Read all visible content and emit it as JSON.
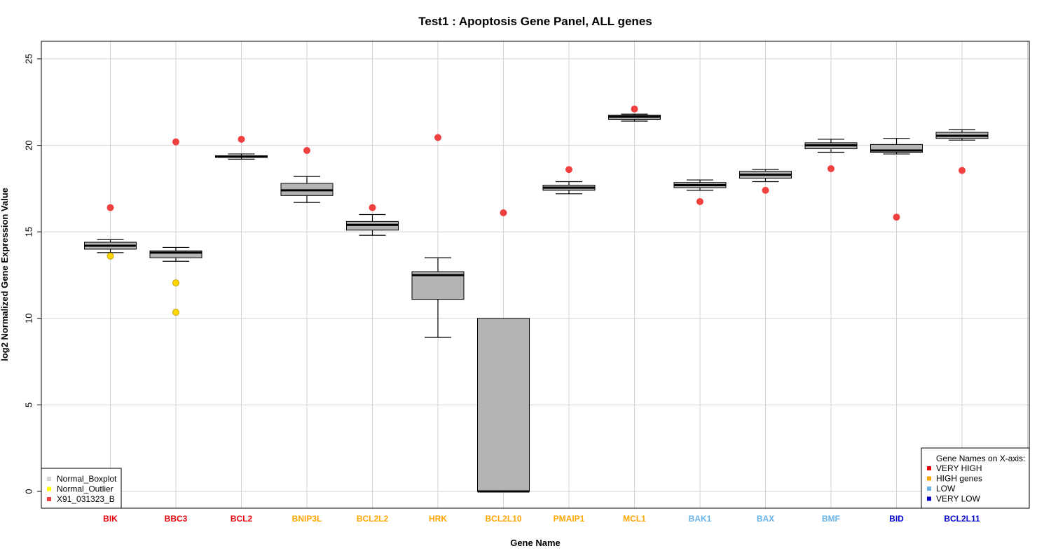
{
  "chart_data": {
    "type": "boxplot",
    "title": "Test1 : Apoptosis Gene Panel, ALL genes",
    "xlabel": "Gene Name",
    "ylabel": "log2 Normalized Gene Expression Value",
    "ylim": [
      -1,
      26
    ],
    "yticks": [
      0,
      5,
      10,
      15,
      20,
      25
    ],
    "grid": true,
    "category_colors": {
      "VERY HIGH": "#e8000b",
      "HIGH genes": "#ffa500",
      "LOW": "#66b2e8",
      "VERY LOW": "#0000cd"
    },
    "genes": [
      {
        "name": "BIK",
        "group": "VERY HIGH",
        "min": 13.8,
        "q1": 14.0,
        "median": 14.2,
        "q3": 14.4,
        "max": 14.55,
        "outliers": [
          13.6
        ],
        "sample": 16.4
      },
      {
        "name": "BBC3",
        "group": "VERY HIGH",
        "min": 13.3,
        "q1": 13.5,
        "median": 13.8,
        "q3": 13.9,
        "max": 14.1,
        "outliers": [
          12.05,
          10.35
        ],
        "sample": 20.2
      },
      {
        "name": "BCL2",
        "group": "VERY HIGH",
        "min": 19.2,
        "q1": 19.3,
        "median": 19.35,
        "q3": 19.4,
        "max": 19.5,
        "outliers": [],
        "sample": 20.35
      },
      {
        "name": "BNIP3L",
        "group": "HIGH genes",
        "min": 16.7,
        "q1": 17.1,
        "median": 17.4,
        "q3": 17.8,
        "max": 18.2,
        "outliers": [],
        "sample": 19.7
      },
      {
        "name": "BCL2L2",
        "group": "HIGH genes",
        "min": 14.8,
        "q1": 15.1,
        "median": 15.4,
        "q3": 15.6,
        "max": 16.0,
        "outliers": [],
        "sample": 16.4
      },
      {
        "name": "HRK",
        "group": "HIGH genes",
        "min": 8.9,
        "q1": 11.1,
        "median": 12.5,
        "q3": 12.7,
        "max": 13.5,
        "outliers": [],
        "sample": 20.45
      },
      {
        "name": "BCL2L10",
        "group": "HIGH genes",
        "min": 0.0,
        "q1": 0.0,
        "median": 0.0,
        "q3": 10.0,
        "max": 10.0,
        "outliers": [],
        "sample": 16.1
      },
      {
        "name": "PMAIP1",
        "group": "HIGH genes",
        "min": 17.2,
        "q1": 17.4,
        "median": 17.55,
        "q3": 17.7,
        "max": 17.9,
        "outliers": [],
        "sample": 18.6
      },
      {
        "name": "MCL1",
        "group": "HIGH genes",
        "min": 21.4,
        "q1": 21.5,
        "median": 21.65,
        "q3": 21.75,
        "max": 21.8,
        "outliers": [],
        "sample": 22.1
      },
      {
        "name": "BAK1",
        "group": "LOW",
        "min": 17.4,
        "q1": 17.55,
        "median": 17.7,
        "q3": 17.85,
        "max": 18.0,
        "outliers": [],
        "sample": 16.75
      },
      {
        "name": "BAX",
        "group": "LOW",
        "min": 17.9,
        "q1": 18.1,
        "median": 18.3,
        "q3": 18.5,
        "max": 18.6,
        "outliers": [],
        "sample": 17.4
      },
      {
        "name": "BMF",
        "group": "LOW",
        "min": 19.6,
        "q1": 19.8,
        "median": 20.0,
        "q3": 20.15,
        "max": 20.35,
        "outliers": [],
        "sample": 18.65
      },
      {
        "name": "BID",
        "group": "VERY LOW",
        "min": 19.5,
        "q1": 19.6,
        "median": 19.7,
        "q3": 20.05,
        "max": 20.4,
        "outliers": [],
        "sample": 15.85
      },
      {
        "name": "BCL2L11",
        "group": "VERY LOW",
        "min": 20.3,
        "q1": 20.4,
        "median": 20.55,
        "q3": 20.75,
        "max": 20.9,
        "outliers": [],
        "sample": 18.55
      }
    ],
    "legend_left": {
      "placement": "bottom-left",
      "entries": [
        {
          "label": "Normal_Boxplot",
          "color": "#d3d3d3"
        },
        {
          "label": "Normal_Outlier",
          "color": "#ffff00"
        },
        {
          "label": "X91_031323_B",
          "color": "#f04040"
        }
      ]
    },
    "legend_right": {
      "placement": "bottom-right",
      "title": "Gene Names on X-axis:",
      "entries": [
        {
          "label": "VERY HIGH",
          "color": "#e8000b"
        },
        {
          "label": "HIGH genes",
          "color": "#ffa500"
        },
        {
          "label": "LOW",
          "color": "#66b2e8"
        },
        {
          "label": "VERY LOW",
          "color": "#0000cd"
        }
      ]
    },
    "colors": {
      "box_fill": "#b3b3b3",
      "outlier_fill": "#ffd700",
      "sample_point": "#f04040",
      "grid": "#d3d3d3"
    }
  }
}
